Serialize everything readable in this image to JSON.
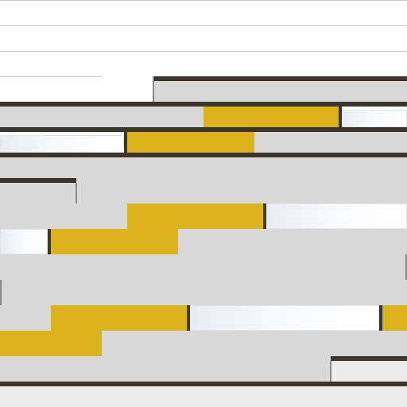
{
  "board": {
    "background": "#ffffff",
    "floor_color": "#d8d8d8",
    "wall_color": "#3a3630",
    "gold_color": "#dbb21a",
    "glass_color": "#f1f3f6"
  },
  "elements": [
    {
      "kind": "row-line",
      "name": "row-divider-1"
    },
    {
      "kind": "row-line",
      "name": "row-divider-2"
    },
    {
      "kind": "row-line",
      "name": "row-divider-3"
    },
    {
      "kind": "gold-block",
      "name": "gold-block-1"
    },
    {
      "kind": "gold-block",
      "name": "gold-block-2"
    },
    {
      "kind": "gold-block",
      "name": "gold-block-3"
    },
    {
      "kind": "gold-block",
      "name": "gold-block-4"
    },
    {
      "kind": "gold-block",
      "name": "gold-block-5"
    },
    {
      "kind": "gold-block",
      "name": "gold-block-6"
    },
    {
      "kind": "gold-block",
      "name": "gold-block-7"
    },
    {
      "kind": "glass-block",
      "name": "glass-block-1"
    },
    {
      "kind": "glass-block",
      "name": "glass-block-2"
    },
    {
      "kind": "glass-block",
      "name": "glass-block-3"
    },
    {
      "kind": "glass-block",
      "name": "glass-block-4"
    },
    {
      "kind": "glass-block",
      "name": "glass-block-5"
    }
  ]
}
